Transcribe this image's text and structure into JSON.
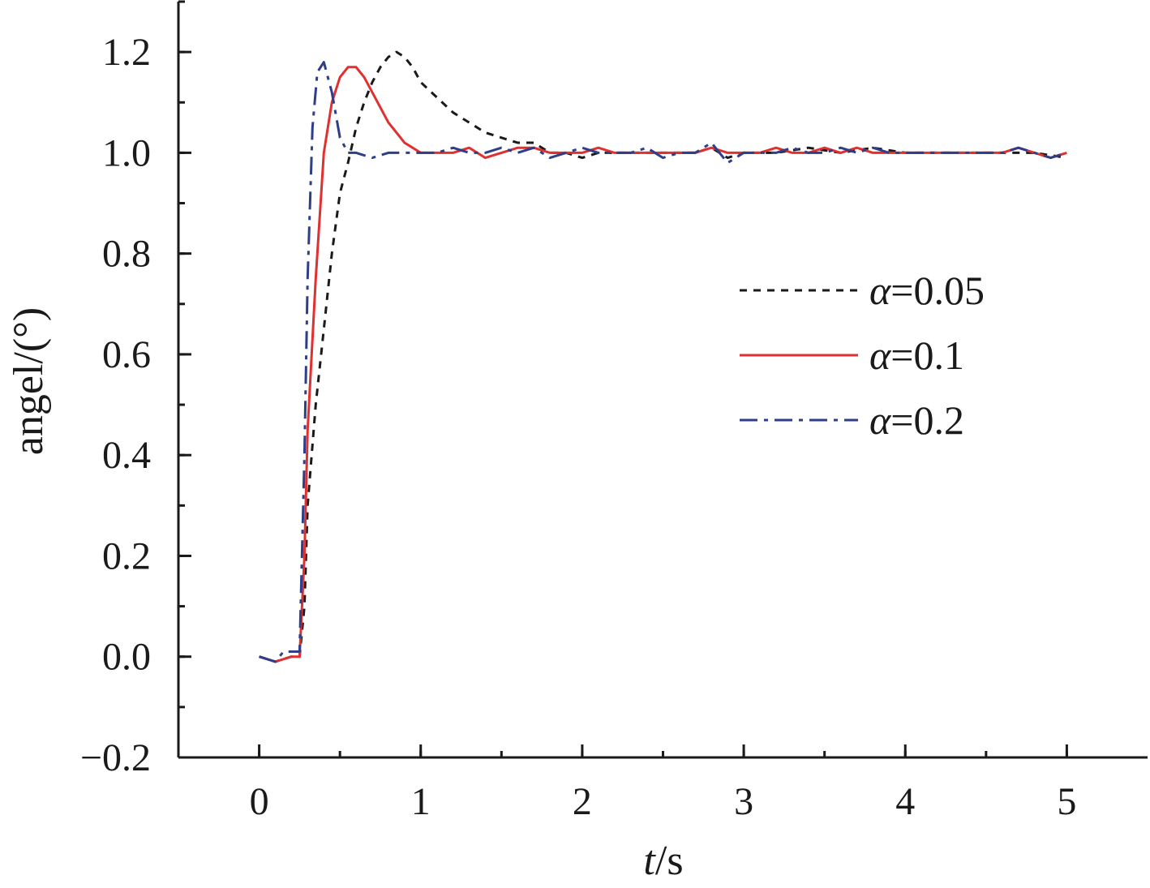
{
  "chart_data": {
    "type": "line",
    "title": "",
    "xlabel": {
      "italic": "t",
      "rest": "/s"
    },
    "ylabel": "angel/(°)",
    "xlim": [
      -0.5,
      5.5
    ],
    "ylim": [
      -0.2,
      1.3
    ],
    "x_ticks": [
      0,
      1,
      2,
      3,
      4,
      5
    ],
    "x_tick_labels": [
      "0",
      "1",
      "2",
      "3",
      "4",
      "5"
    ],
    "y_ticks": [
      -0.2,
      0.0,
      0.2,
      0.4,
      0.6,
      0.8,
      1.0,
      1.2
    ],
    "y_tick_labels": [
      "−0.2",
      "0.0",
      "0.2",
      "0.4",
      "0.6",
      "0.8",
      "1.0",
      "1.2"
    ],
    "y_minor_step": 0.1,
    "x_minor_step": 0.5,
    "grid": false,
    "legend_position": "center-right",
    "series": [
      {
        "name": "α=0.05",
        "symbol": "α",
        "value_text": "=0.05",
        "color": "#1a1a1a",
        "dash": "9,8",
        "x": [
          0,
          0.1,
          0.2,
          0.25,
          0.28,
          0.3,
          0.35,
          0.4,
          0.45,
          0.5,
          0.55,
          0.6,
          0.65,
          0.7,
          0.75,
          0.8,
          0.85,
          0.9,
          0.95,
          1.0,
          1.1,
          1.2,
          1.3,
          1.4,
          1.5,
          1.6,
          1.7,
          1.8,
          1.9,
          2.0,
          2.1,
          2.2,
          2.3,
          2.4,
          2.5,
          2.6,
          2.7,
          2.8,
          2.9,
          3.0,
          3.2,
          3.4,
          3.6,
          3.8,
          4.0,
          4.2,
          4.4,
          4.6,
          4.8,
          5.0
        ],
        "y": [
          0.0,
          -0.01,
          0.0,
          0.0,
          0.1,
          0.3,
          0.5,
          0.65,
          0.8,
          0.92,
          0.98,
          1.05,
          1.1,
          1.14,
          1.17,
          1.19,
          1.2,
          1.19,
          1.17,
          1.14,
          1.11,
          1.08,
          1.06,
          1.04,
          1.03,
          1.02,
          1.02,
          1.0,
          1.0,
          0.99,
          1.0,
          1.0,
          1.0,
          1.0,
          1.0,
          1.0,
          1.0,
          1.01,
          0.99,
          1.0,
          1.0,
          1.01,
          1.0,
          1.01,
          1.0,
          1.0,
          1.0,
          1.0,
          1.0,
          0.99
        ]
      },
      {
        "name": "α=0.1",
        "symbol": "α",
        "value_text": "=0.1",
        "color": "#e03030",
        "dash": "",
        "x": [
          0,
          0.1,
          0.2,
          0.25,
          0.28,
          0.3,
          0.35,
          0.4,
          0.45,
          0.5,
          0.55,
          0.6,
          0.65,
          0.7,
          0.75,
          0.8,
          0.85,
          0.9,
          0.95,
          1.0,
          1.05,
          1.1,
          1.2,
          1.3,
          1.4,
          1.5,
          1.6,
          1.7,
          1.8,
          1.9,
          2.0,
          2.1,
          2.2,
          2.3,
          2.4,
          2.5,
          2.6,
          2.7,
          2.8,
          2.9,
          3.0,
          3.1,
          3.2,
          3.3,
          3.4,
          3.5,
          3.6,
          3.7,
          3.8,
          3.9,
          4.0,
          4.1,
          4.2,
          4.3,
          4.4,
          4.5,
          4.6,
          4.7,
          4.8,
          4.9,
          5.0
        ],
        "y": [
          0.0,
          -0.01,
          0.0,
          0.0,
          0.2,
          0.45,
          0.75,
          1.0,
          1.1,
          1.15,
          1.17,
          1.17,
          1.15,
          1.12,
          1.09,
          1.06,
          1.04,
          1.02,
          1.01,
          1.0,
          1.0,
          1.0,
          1.0,
          1.01,
          0.99,
          1.0,
          1.01,
          1.01,
          1.0,
          1.0,
          1.0,
          1.01,
          1.0,
          1.0,
          1.0,
          1.0,
          1.0,
          1.0,
          1.01,
          1.0,
          1.0,
          1.0,
          1.01,
          1.0,
          1.0,
          1.01,
          1.0,
          1.01,
          1.0,
          1.0,
          1.0,
          1.0,
          1.0,
          1.0,
          1.0,
          1.0,
          1.0,
          1.01,
          1.0,
          0.99,
          1.0
        ]
      },
      {
        "name": "α=0.2",
        "symbol": "α",
        "value_text": "=0.2",
        "color": "#2e3e88",
        "dash": "22,8,5,8",
        "x": [
          0,
          0.1,
          0.15,
          0.2,
          0.25,
          0.28,
          0.3,
          0.33,
          0.36,
          0.4,
          0.45,
          0.5,
          0.55,
          0.6,
          0.7,
          0.8,
          0.9,
          1.0,
          1.1,
          1.2,
          1.3,
          1.4,
          1.5,
          1.6,
          1.7,
          1.8,
          1.9,
          2.0,
          2.1,
          2.2,
          2.3,
          2.4,
          2.5,
          2.6,
          2.7,
          2.8,
          2.9,
          3.0,
          3.1,
          3.2,
          3.3,
          3.4,
          3.5,
          3.6,
          3.7,
          3.8,
          3.9,
          4.0,
          4.1,
          4.2,
          4.3,
          4.4,
          4.5,
          4.6,
          4.7,
          4.8,
          4.9,
          5.0
        ],
        "y": [
          0.0,
          -0.01,
          0.01,
          0.01,
          0.01,
          0.4,
          0.75,
          1.05,
          1.16,
          1.18,
          1.12,
          1.03,
          1.0,
          1.0,
          0.99,
          1.0,
          1.0,
          1.0,
          1.0,
          1.01,
          1.0,
          1.0,
          1.01,
          1.0,
          1.01,
          0.99,
          1.0,
          1.01,
          1.0,
          1.0,
          1.0,
          1.01,
          0.99,
          1.0,
          1.0,
          1.02,
          0.98,
          1.0,
          1.0,
          1.0,
          1.01,
          1.0,
          1.0,
          1.01,
          1.0,
          1.01,
          1.0,
          1.0,
          1.0,
          1.0,
          1.0,
          1.0,
          1.0,
          1.0,
          1.01,
          1.0,
          0.99,
          1.0
        ]
      }
    ]
  }
}
